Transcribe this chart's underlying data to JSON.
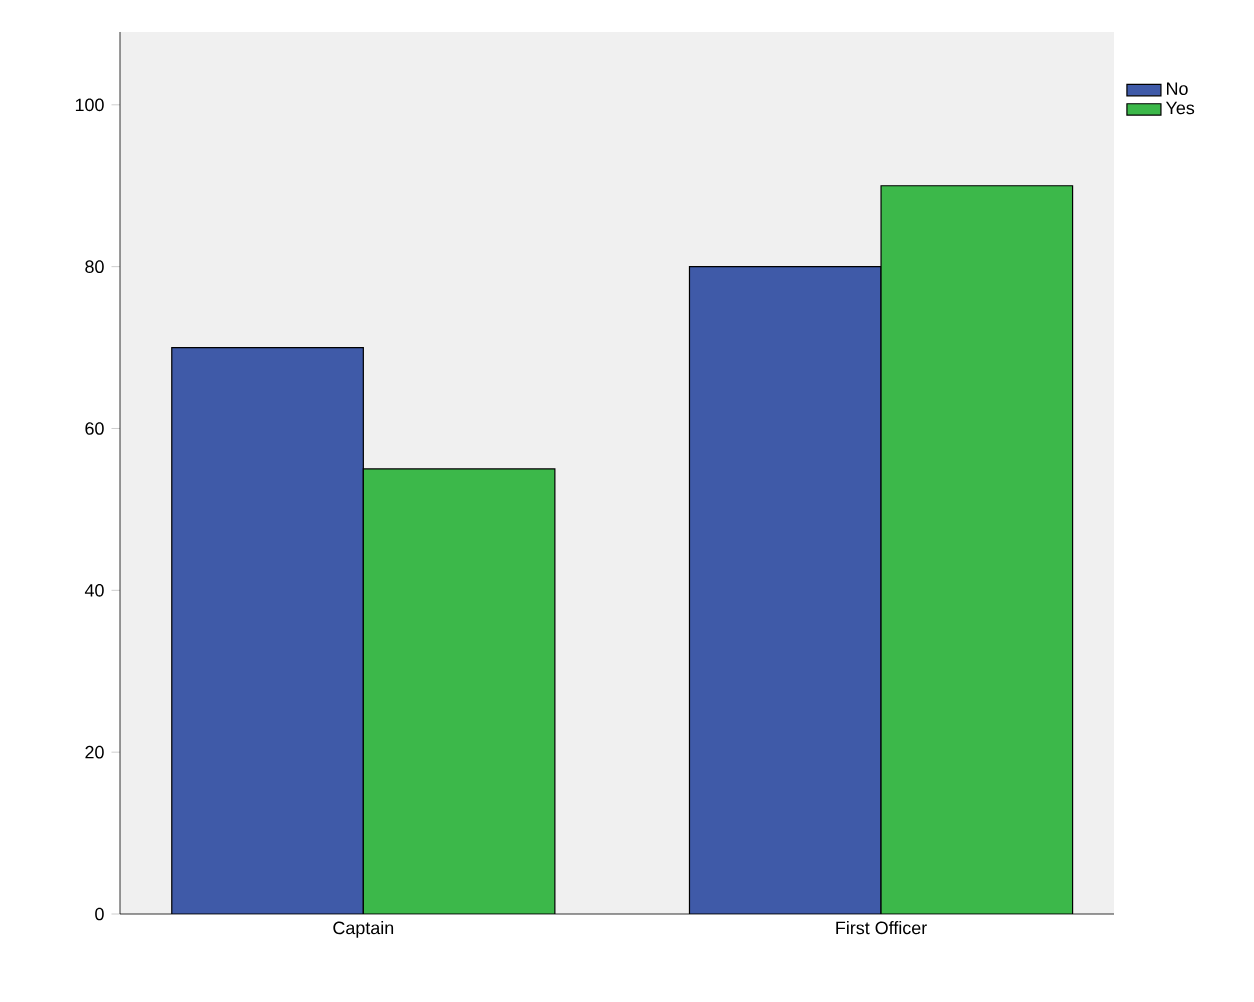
{
  "chart_data": {
    "type": "bar",
    "categories": [
      "Captain",
      "First Officer"
    ],
    "series": [
      {
        "name": "No",
        "color": "#3f5aa8",
        "values": [
          70,
          80
        ]
      },
      {
        "name": "Yes",
        "color": "#3cb84a",
        "values": [
          55,
          90
        ]
      }
    ],
    "ylim": [
      0,
      109
    ],
    "yticks": [
      0,
      20,
      40,
      60,
      80,
      100
    ],
    "grid": false,
    "legend": "top right"
  }
}
